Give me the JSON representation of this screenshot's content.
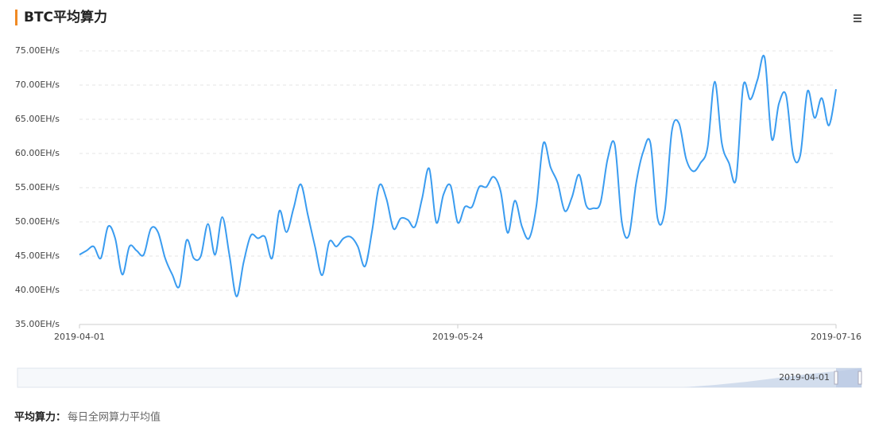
{
  "chart_data": {
    "type": "line",
    "title": "BTC平均算力",
    "categories": [
      "2019-04-01",
      null,
      null,
      null,
      null,
      null,
      null,
      null,
      null,
      null,
      null,
      null,
      null,
      null,
      null,
      null,
      null,
      null,
      null,
      null,
      null,
      null,
      null,
      null,
      null,
      null,
      null,
      null,
      null,
      null,
      null,
      null,
      null,
      null,
      null,
      null,
      null,
      null,
      null,
      null,
      null,
      null,
      null,
      null,
      null,
      null,
      null,
      null,
      null,
      null,
      null,
      null,
      null,
      "2019-05-24",
      null,
      null,
      null,
      null,
      null,
      null,
      null,
      null,
      null,
      null,
      null,
      null,
      null,
      null,
      null,
      null,
      null,
      null,
      null,
      null,
      null,
      null,
      null,
      null,
      null,
      null,
      null,
      null,
      null,
      null,
      null,
      null,
      null,
      null,
      null,
      null,
      null,
      null,
      null,
      null,
      null,
      null,
      null,
      null,
      null,
      null,
      null,
      null,
      null,
      null,
      null,
      null,
      "2019-07-16"
    ],
    "series": [
      {
        "name": "平均算力",
        "color": "#3a9cf0",
        "values": [
          45.2,
          45.8,
          46.4,
          44.7,
          49.3,
          47.6,
          42.3,
          46.4,
          45.8,
          45.2,
          49.0,
          48.5,
          44.7,
          42.3,
          40.6,
          47.3,
          44.7,
          45.0,
          49.7,
          45.2,
          50.7,
          45.2,
          39.1,
          44.1,
          48.0,
          47.6,
          47.8,
          44.7,
          51.6,
          48.5,
          52.0,
          55.5,
          51.0,
          46.4,
          42.2,
          47.1,
          46.4,
          47.6,
          47.8,
          46.4,
          43.5,
          48.7,
          55.3,
          53.4,
          49.0,
          50.5,
          50.3,
          49.3,
          53.4,
          57.8,
          49.9,
          54.0,
          55.3,
          49.9,
          52.2,
          52.2,
          55.1,
          55.1,
          56.6,
          54.5,
          48.4,
          53.1,
          49.3,
          47.6,
          52.2,
          61.5,
          58.0,
          55.7,
          51.6,
          53.6,
          56.9,
          52.4,
          52.0,
          52.8,
          59.2,
          61.3,
          49.9,
          48.1,
          55.7,
          60.3,
          61.5,
          50.5,
          51.6,
          63.3,
          64.4,
          59.2,
          57.4,
          58.6,
          60.9,
          70.5,
          61.5,
          58.6,
          56.3,
          69.9,
          67.9,
          70.8,
          74.0,
          62.1,
          67.3,
          68.5,
          59.8,
          59.8,
          69.1,
          65.2,
          68.1,
          64.1,
          69.4
        ]
      }
    ],
    "ylim": [
      35,
      75
    ],
    "yticks": [
      {
        "value": 35,
        "label": "35.00EH/s"
      },
      {
        "value": 40,
        "label": "40.00EH/s"
      },
      {
        "value": 45,
        "label": "45.00EH/s"
      },
      {
        "value": 50,
        "label": "50.00EH/s"
      },
      {
        "value": 55,
        "label": "55.00EH/s"
      },
      {
        "value": 60,
        "label": "60.00EH/s"
      },
      {
        "value": 65,
        "label": "65.00EH/s"
      },
      {
        "value": 70,
        "label": "70.00EH/s"
      },
      {
        "value": 75,
        "label": "75.00EH/s"
      }
    ],
    "grid": true,
    "note": {
      "label": "平均算力：",
      "text": "每日全网算力平均值"
    }
  }
}
